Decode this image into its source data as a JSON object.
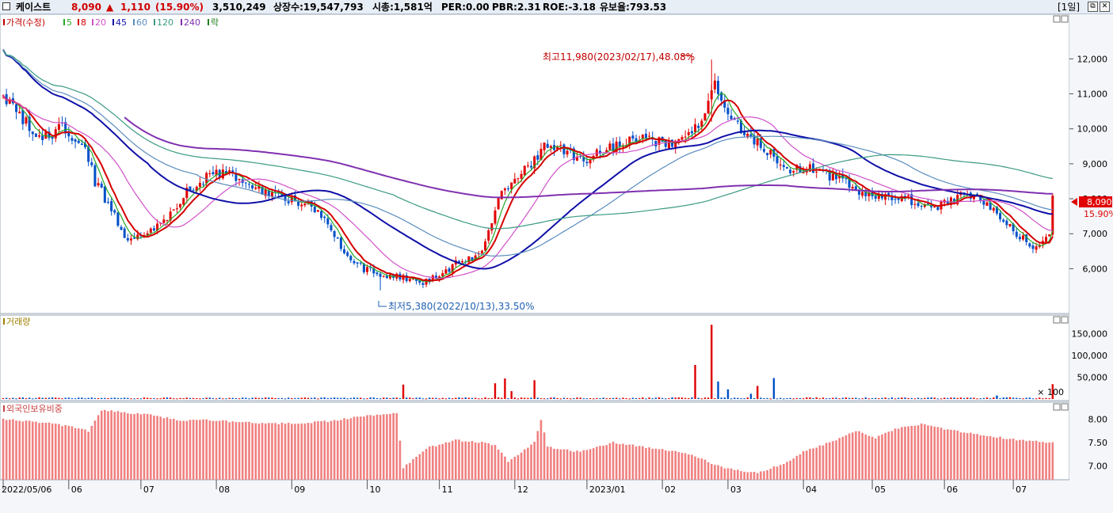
{
  "header": {
    "name": "케이스트",
    "price": "8,090",
    "change_arrow": "▲",
    "change": "1,110",
    "change_pct": "(15.90%)",
    "volume": "3,510,249",
    "listed_shares": "상장수:19,547,793",
    "market_cap": "시총:1,581억",
    "per": "PER:0.00",
    "pbr": "PBR:2.31",
    "roe": "ROE:-3.18",
    "float_ratio": "유보율:793.53",
    "period": "[1일]",
    "colors": {
      "up": "#d00000",
      "down": "#0050c8"
    }
  },
  "window_buttons": {
    "restore": "⧉",
    "close": "✕"
  },
  "panels": {
    "price": {
      "legend": [
        {
          "text": "가격(수정)",
          "color": "#c00000"
        },
        {
          "text": "5",
          "color": "#26a826"
        },
        {
          "text": "8",
          "color": "#d40000"
        },
        {
          "text": "20",
          "color": "#d050c8"
        },
        {
          "text": "45",
          "color": "#1010a8"
        },
        {
          "text": "60",
          "color": "#5a8cbe"
        },
        {
          "text": "120",
          "color": "#3a9a82"
        },
        {
          "text": "240",
          "color": "#8030b0"
        },
        {
          "text": "락",
          "color": "#208020"
        }
      ]
    },
    "volume": {
      "legend": [
        {
          "text": "거래량",
          "color": "#a08000"
        }
      ]
    },
    "foreign": {
      "legend": [
        {
          "text": "외국인보유비중",
          "color": "#c84040"
        }
      ]
    }
  },
  "annotations": {
    "high": "최고11,980(2023/02/17),48.08%",
    "low": "최저5,380(2022/10/13),33.50%",
    "last_price": "8,090",
    "last_pct": "15.90%",
    "volume_unit": "× 100"
  },
  "chart_data": [
    {
      "type": "candlestick",
      "panel": "price",
      "title": "",
      "x_labels": [
        "2022/05/06",
        "06",
        "07",
        "08",
        "09",
        "10",
        "11",
        "12",
        "2023/01",
        "02",
        "03",
        "04",
        "05",
        "06",
        "07"
      ],
      "y_ticks": [
        "6,000",
        "7,000",
        "8,000",
        "9,000",
        "10,000",
        "11,000",
        "12,000"
      ],
      "y_tick_values": [
        6000,
        7000,
        8000,
        9000,
        10000,
        11000,
        12000
      ],
      "ylim": [
        4900,
        13050
      ],
      "last": 8090,
      "prev_close": 6980,
      "high": {
        "date": "2023/02/17",
        "value": 11980
      },
      "low": {
        "date": "2022/10/13",
        "value": 5380
      },
      "close_path": [
        [
          0,
          10950
        ],
        [
          6,
          10300
        ],
        [
          12,
          9700
        ],
        [
          18,
          10050
        ],
        [
          25,
          9500
        ],
        [
          28,
          8500
        ],
        [
          33,
          7700
        ],
        [
          38,
          6800
        ],
        [
          44,
          7000
        ],
        [
          50,
          7400
        ],
        [
          56,
          8200
        ],
        [
          62,
          8600
        ],
        [
          68,
          8800
        ],
        [
          74,
          8500
        ],
        [
          80,
          8200
        ],
        [
          86,
          8000
        ],
        [
          92,
          7900
        ],
        [
          98,
          7500
        ],
        [
          104,
          6500
        ],
        [
          110,
          6000
        ],
        [
          116,
          5800
        ],
        [
          122,
          5750
        ],
        [
          128,
          5600
        ],
        [
          134,
          5900
        ],
        [
          140,
          6250
        ],
        [
          146,
          6450
        ],
        [
          151,
          8000
        ],
        [
          156,
          8500
        ],
        [
          161,
          9000
        ],
        [
          166,
          9600
        ],
        [
          172,
          9300
        ],
        [
          178,
          9100
        ],
        [
          184,
          9400
        ],
        [
          190,
          9600
        ],
        [
          196,
          9800
        ],
        [
          202,
          9500
        ],
        [
          208,
          9700
        ],
        [
          214,
          10400
        ],
        [
          217,
          11300
        ],
        [
          220,
          10500
        ],
        [
          226,
          9900
        ],
        [
          232,
          9500
        ],
        [
          238,
          8800
        ],
        [
          244,
          8900
        ],
        [
          250,
          8700
        ],
        [
          256,
          8500
        ],
        [
          262,
          8200
        ],
        [
          268,
          8000
        ],
        [
          274,
          8000
        ],
        [
          280,
          7900
        ],
        [
          286,
          7800
        ],
        [
          292,
          8100
        ],
        [
          298,
          8000
        ],
        [
          304,
          7500
        ],
        [
          310,
          6900
        ],
        [
          315,
          6600
        ],
        [
          318,
          6950
        ],
        [
          319,
          8090
        ]
      ],
      "moving_averages": [
        {
          "name": "5",
          "period": 5,
          "color": "#26a826"
        },
        {
          "name": "8",
          "period": 8,
          "color": "#d40000"
        },
        {
          "name": "20",
          "period": 20,
          "color": "#d050c8"
        },
        {
          "name": "45",
          "period": 45,
          "color": "#1010a8"
        },
        {
          "name": "60",
          "period": 60,
          "color": "#5a8cbe"
        },
        {
          "name": "120",
          "period": 120,
          "color": "#3a9a82"
        },
        {
          "name": "240",
          "period": 240,
          "color": "#8030b0"
        }
      ]
    },
    {
      "type": "bar",
      "panel": "volume",
      "y_ticks": [
        "50,000",
        "100,000",
        "150,000"
      ],
      "y_tick_values": [
        50000,
        100000,
        150000
      ],
      "ylim": [
        0,
        185000
      ],
      "unit": "× 100",
      "spikes": [
        [
          122,
          33000
        ],
        [
          150,
          36000
        ],
        [
          153,
          47000
        ],
        [
          155,
          18000
        ],
        [
          162,
          43000
        ],
        [
          211,
          78000
        ],
        [
          216,
          170000
        ],
        [
          218,
          40000
        ],
        [
          221,
          22000
        ],
        [
          228,
          12000
        ],
        [
          230,
          30000
        ],
        [
          235,
          48000
        ],
        [
          303,
          8000
        ],
        [
          307,
          4000
        ],
        [
          320,
          34000
        ]
      ]
    },
    {
      "type": "bar",
      "panel": "foreign",
      "y_ticks": [
        "7.00",
        "7.50",
        "8.00"
      ],
      "y_tick_values": [
        7.0,
        7.5,
        8.0
      ],
      "ylim": [
        6.7,
        8.3
      ],
      "color": "#f08080",
      "level_path": [
        [
          0,
          8.0
        ],
        [
          10,
          7.95
        ],
        [
          20,
          7.85
        ],
        [
          26,
          7.75
        ],
        [
          30,
          8.2
        ],
        [
          36,
          8.15
        ],
        [
          44,
          8.1
        ],
        [
          54,
          7.98
        ],
        [
          64,
          7.98
        ],
        [
          80,
          7.9
        ],
        [
          90,
          7.92
        ],
        [
          100,
          7.96
        ],
        [
          108,
          8.05
        ],
        [
          116,
          8.1
        ],
        [
          120,
          8.12
        ],
        [
          122,
          6.95
        ],
        [
          126,
          7.2
        ],
        [
          130,
          7.4
        ],
        [
          138,
          7.55
        ],
        [
          146,
          7.5
        ],
        [
          150,
          7.45
        ],
        [
          154,
          7.1
        ],
        [
          158,
          7.3
        ],
        [
          162,
          7.5
        ],
        [
          164,
          8.0
        ],
        [
          166,
          7.4
        ],
        [
          176,
          7.3
        ],
        [
          186,
          7.5
        ],
        [
          196,
          7.4
        ],
        [
          206,
          7.3
        ],
        [
          210,
          7.25
        ],
        [
          216,
          7.05
        ],
        [
          220,
          6.95
        ],
        [
          224,
          6.9
        ],
        [
          230,
          6.85
        ],
        [
          236,
          7.0
        ],
        [
          240,
          7.1
        ],
        [
          244,
          7.3
        ],
        [
          254,
          7.55
        ],
        [
          260,
          7.75
        ],
        [
          266,
          7.6
        ],
        [
          272,
          7.8
        ],
        [
          280,
          7.9
        ],
        [
          290,
          7.75
        ],
        [
          300,
          7.65
        ],
        [
          310,
          7.55
        ],
        [
          320,
          7.5
        ]
      ]
    }
  ]
}
